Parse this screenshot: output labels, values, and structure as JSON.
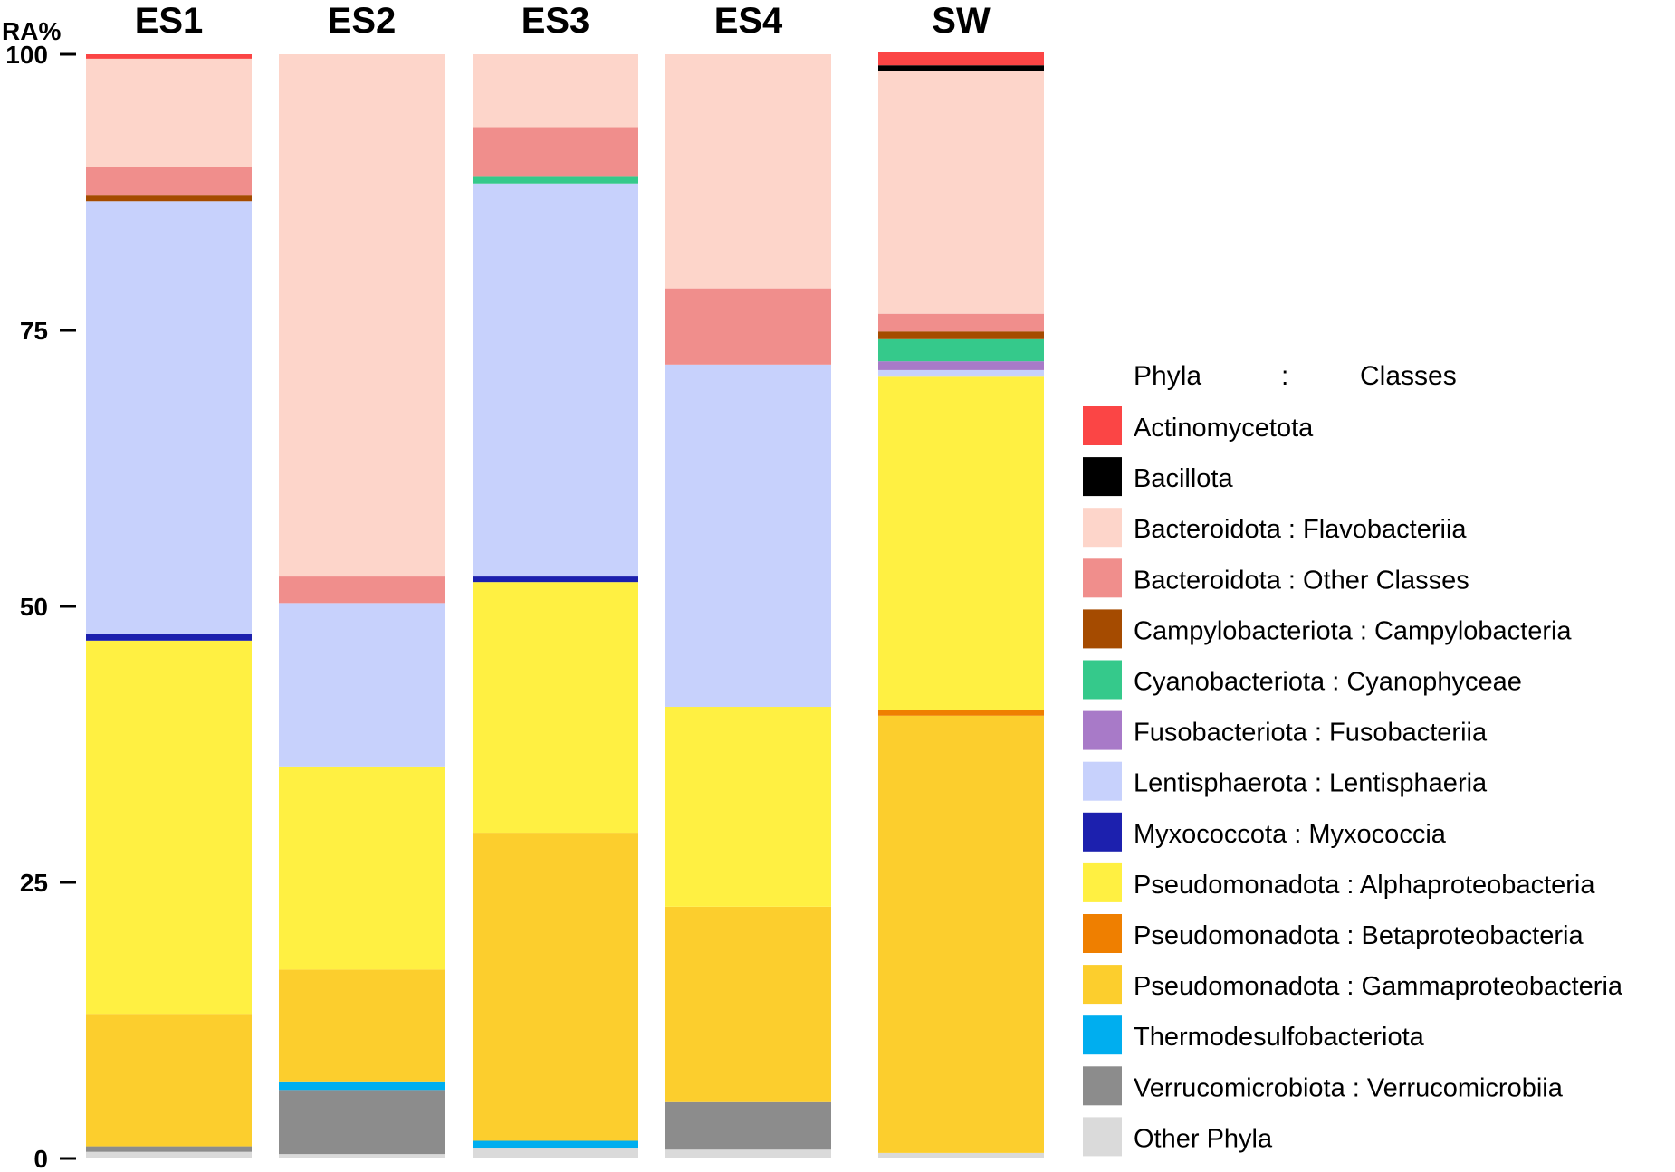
{
  "chart_data": {
    "type": "stacked-bar",
    "ylabel": "RA%",
    "ylim": [
      0,
      100
    ],
    "yticks": [
      "0",
      "25",
      "50",
      "75",
      "100"
    ],
    "categories": [
      "ES1",
      "ES2",
      "ES3",
      "ES4",
      "SW"
    ],
    "legend_header": {
      "phyla": "Phyla",
      "sep": ":",
      "classes": "Classes"
    },
    "series": [
      {
        "key": "other",
        "phylum": "Other Phyla",
        "class": "",
        "color": "#dadada",
        "values": [
          0.6,
          0.4,
          0.9,
          0.8,
          0.5
        ]
      },
      {
        "key": "verruco",
        "phylum": "Verrucomicrobiota",
        "class": "Verrucomicrobiia",
        "color": "#8c8c8c",
        "values": [
          0.5,
          5.8,
          0,
          4.3,
          0
        ]
      },
      {
        "key": "thermo",
        "phylum": "Thermodesulfobacteriota",
        "class": "",
        "color": "#00aeef",
        "values": [
          0,
          0.7,
          0.7,
          0,
          0
        ]
      },
      {
        "key": "gamma",
        "phylum": "Pseudomonadota",
        "class": "Gammaproteobacteria",
        "color": "#fcce2d",
        "values": [
          12.0,
          10.2,
          27.9,
          17.7,
          39.6
        ]
      },
      {
        "key": "beta",
        "phylum": "Pseudomonadota",
        "class": "Betaproteobacteria",
        "color": "#ef7f00",
        "values": [
          0,
          0,
          0,
          0,
          0.5
        ]
      },
      {
        "key": "alpha",
        "phylum": "Pseudomonadota",
        "class": "Alphaproteobacteria",
        "color": "#fff042",
        "values": [
          33.8,
          18.4,
          22.7,
          18.1,
          30.2
        ]
      },
      {
        "key": "myxo",
        "phylum": "Myxococcota",
        "class": "Myxococcia",
        "color": "#1c20ae",
        "values": [
          0.6,
          0,
          0.5,
          0,
          0
        ]
      },
      {
        "key": "lenti",
        "phylum": "Lentisphaerota",
        "class": "Lentisphaeria",
        "color": "#c7d1fc",
        "values": [
          39.2,
          14.8,
          35.6,
          31.0,
          0.6
        ]
      },
      {
        "key": "fuso",
        "phylum": "Fusobacteriota",
        "class": "Fusobacteriia",
        "color": "#a87ac8",
        "values": [
          0,
          0,
          0,
          0,
          0.8
        ]
      },
      {
        "key": "cyano",
        "phylum": "Cyanobacteriota",
        "class": "Cyanophyceae",
        "color": "#35c98b",
        "values": [
          0,
          0,
          0.6,
          0,
          2.0
        ]
      },
      {
        "key": "campy",
        "phylum": "Campylobacteriota",
        "class": "Campylobacteria",
        "color": "#a54b00",
        "values": [
          0.5,
          0,
          0,
          0,
          0.7
        ]
      },
      {
        "key": "bact_other",
        "phylum": "Bacteroidota",
        "class": "Other Classes",
        "color": "#f08e8c",
        "values": [
          2.6,
          2.4,
          4.5,
          6.9,
          1.6
        ]
      },
      {
        "key": "flavo",
        "phylum": "Bacteroidota",
        "class": "Flavobacteriia",
        "color": "#fdd5ca",
        "values": [
          9.8,
          47.3,
          6.6,
          21.2,
          22.0
        ]
      },
      {
        "key": "bacillota",
        "phylum": "Bacillota",
        "class": "",
        "color": "#000000",
        "values": [
          0,
          0,
          0,
          0,
          0.5
        ]
      },
      {
        "key": "actino",
        "phylum": "Actinomycetota",
        "class": "",
        "color": "#fb4545",
        "values": [
          0.4,
          0,
          0,
          0,
          1.2
        ]
      }
    ],
    "legend_order": [
      "actino",
      "bacillota",
      "flavo",
      "bact_other",
      "campy",
      "cyano",
      "fuso",
      "lenti",
      "myxo",
      "alpha",
      "beta",
      "gamma",
      "thermo",
      "verruco",
      "other"
    ]
  }
}
